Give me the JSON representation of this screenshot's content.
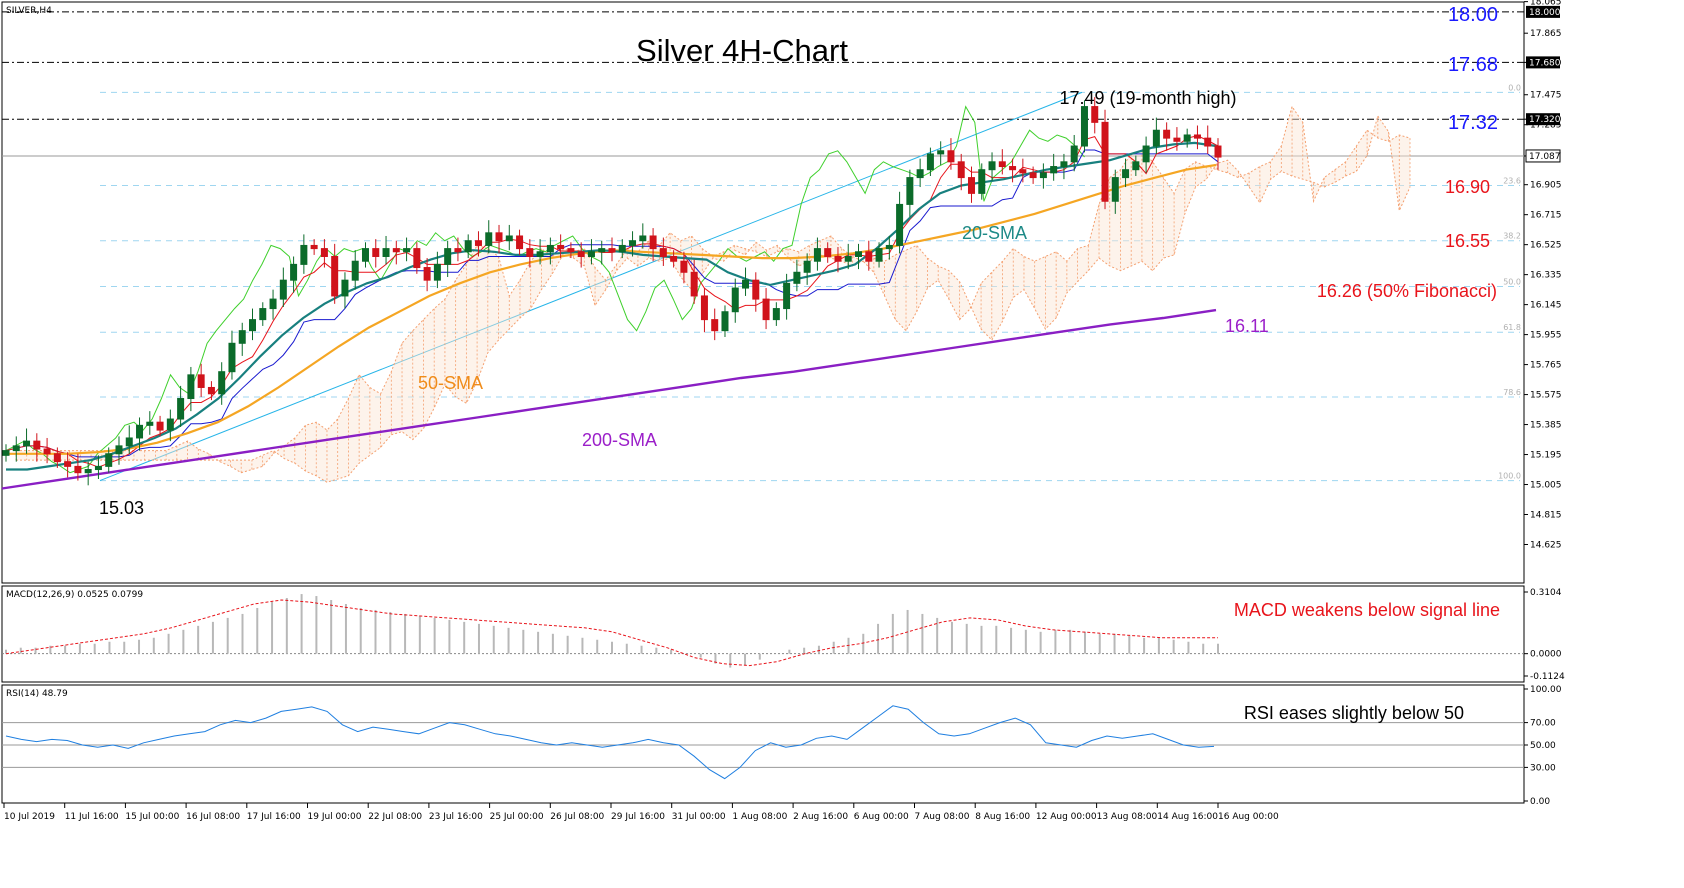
{
  "chart_data": {
    "type": "line",
    "symbol": "SILVER,H4",
    "title": "Silver 4H-Chart",
    "x_labels": [
      "10 Jul 2019",
      "11 Jul 16:00",
      "15 Jul 00:00",
      "16 Jul 08:00",
      "17 Jul 16:00",
      "19 Jul 00:00",
      "22 Jul 08:00",
      "23 Jul 16:00",
      "25 Jul 00:00",
      "26 Jul 08:00",
      "29 Jul 16:00",
      "31 Jul 00:00",
      "1 Aug 08:00",
      "2 Aug 16:00",
      "6 Aug 00:00",
      "7 Aug 08:00",
      "8 Aug 16:00",
      "12 Aug 00:00",
      "13 Aug 08:00",
      "14 Aug 16:00",
      "16 Aug 00:00"
    ],
    "price_axis": {
      "ylim": [
        14.4,
        18.05
      ],
      "ticks": [
        "18.065",
        "17.865",
        "17.680",
        "17.475",
        "17.320",
        "17.285",
        "17.087",
        "16.905",
        "16.715",
        "16.525",
        "16.335",
        "16.145",
        "15.955",
        "15.765",
        "15.575",
        "15.385",
        "15.195",
        "15.005",
        "14.815",
        "14.625"
      ]
    },
    "markers": [
      {
        "label": "18.00",
        "value": 18.0,
        "price_label": "18.000"
      },
      {
        "label": "17.68",
        "value": 17.68,
        "price_label": "17.680"
      },
      {
        "label": "17.32",
        "value": 17.32,
        "price_label": "17.320"
      }
    ],
    "current_price": {
      "value": 17.087,
      "price_label": "17.087"
    },
    "fibonacci": {
      "levels": [
        {
          "ratio": "0.0",
          "value": 17.49
        },
        {
          "ratio": "23.6",
          "value": 16.9
        },
        {
          "ratio": "38.2",
          "value": 16.55
        },
        {
          "ratio": "50.0",
          "value": 16.26
        },
        {
          "ratio": "61.8",
          "value": 15.97
        },
        {
          "ratio": "78.6",
          "value": 15.56
        },
        {
          "ratio": "100.0",
          "value": 15.03
        }
      ]
    },
    "annotations": {
      "high": "17.49 (19-month high)",
      "low": "15.03",
      "lvl_1690": "16.90",
      "lvl_1655": "16.55",
      "lvl_1626": "16.26 (50% Fibonacci)",
      "lvl_1611": "16.11",
      "sma20": "20-SMA",
      "sma50": "50-SMA",
      "sma200": "200-SMA"
    },
    "close_series": [
      15.22,
      15.25,
      15.28,
      15.23,
      15.2,
      15.15,
      15.12,
      15.08,
      15.1,
      15.12,
      15.2,
      15.25,
      15.3,
      15.38,
      15.4,
      15.35,
      15.42,
      15.55,
      15.7,
      15.62,
      15.58,
      15.72,
      15.9,
      15.98,
      16.05,
      16.12,
      16.18,
      16.3,
      16.4,
      16.52,
      16.5,
      16.45,
      16.2,
      16.3,
      16.42,
      16.5,
      16.45,
      16.5,
      16.48,
      16.5,
      16.38,
      16.3,
      16.4,
      16.5,
      16.48,
      16.55,
      16.52,
      16.6,
      16.55,
      16.58,
      16.5,
      16.45,
      16.48,
      16.52,
      16.5,
      16.48,
      16.45,
      16.48,
      16.5,
      16.48,
      16.52,
      16.55,
      16.58,
      16.5,
      16.45,
      16.42,
      16.35,
      16.2,
      16.05,
      15.98,
      16.1,
      16.25,
      16.3,
      16.18,
      16.05,
      16.12,
      16.28,
      16.35,
      16.42,
      16.5,
      16.45,
      16.42,
      16.45,
      16.48,
      16.42,
      16.5,
      16.52,
      16.78,
      16.95,
      17.0,
      17.1,
      17.12,
      17.05,
      16.95,
      16.85,
      17.0,
      17.05,
      17.02,
      17.0,
      16.98,
      16.95,
      16.98,
      17.02,
      17.05,
      17.15,
      17.4,
      17.3,
      16.8,
      16.95,
      17.0,
      17.05,
      17.15,
      17.25,
      17.2,
      17.18,
      17.22,
      17.2,
      17.15,
      17.08
    ],
    "sma20_series": [
      15.1,
      15.1,
      15.12,
      15.14,
      15.16,
      15.2,
      15.25,
      15.3,
      15.36,
      15.45,
      15.55,
      15.68,
      15.82,
      15.95,
      16.06,
      16.15,
      16.22,
      16.28,
      16.32,
      16.38,
      16.43,
      16.47,
      16.49,
      16.48,
      16.46,
      16.46,
      16.47,
      16.48,
      16.49,
      16.48,
      16.46,
      16.45,
      16.44,
      16.43,
      16.35,
      16.3,
      16.27,
      16.3,
      16.33,
      16.36,
      16.4,
      16.5,
      16.62,
      16.75,
      16.85,
      16.9,
      16.92,
      16.94,
      16.97,
      17.0,
      17.02,
      17.04,
      17.06,
      17.1,
      17.14,
      17.16,
      17.17,
      17.15
    ],
    "sma50_series": [
      15.2,
      15.2,
      15.2,
      15.21,
      15.23,
      15.27,
      15.33,
      15.4,
      15.5,
      15.62,
      15.75,
      15.88,
      16.0,
      16.1,
      16.2,
      16.28,
      16.35,
      16.4,
      16.44,
      16.47,
      16.49,
      16.48,
      16.47,
      16.46,
      16.45,
      16.44,
      16.44,
      16.45,
      16.47,
      16.5,
      16.54,
      16.58,
      16.62,
      16.67,
      16.72,
      16.78,
      16.84,
      16.9,
      16.95,
      17.0,
      17.03
    ],
    "sma200_series": [
      14.98,
      15.03,
      15.08,
      15.13,
      15.18,
      15.23,
      15.28,
      15.33,
      15.38,
      15.43,
      15.48,
      15.53,
      15.58,
      15.63,
      15.68,
      15.72,
      15.77,
      15.82,
      15.87,
      15.92,
      15.97,
      16.02,
      16.06,
      16.11
    ],
    "macd": {
      "label": "MACD(12,26,9) 0.0525 0.0799",
      "ylim": [
        -0.1124,
        0.3104
      ],
      "ticks": [
        "0.3104",
        "0.0000",
        "-0.1124"
      ],
      "histogram": [
        0.02,
        0.03,
        0.03,
        0.04,
        0.04,
        0.05,
        0.05,
        0.06,
        0.06,
        0.07,
        0.08,
        0.1,
        0.12,
        0.14,
        0.16,
        0.18,
        0.2,
        0.23,
        0.26,
        0.28,
        0.3,
        0.29,
        0.27,
        0.25,
        0.23,
        0.22,
        0.21,
        0.2,
        0.19,
        0.18,
        0.17,
        0.16,
        0.15,
        0.14,
        0.13,
        0.12,
        0.11,
        0.1,
        0.09,
        0.08,
        0.07,
        0.06,
        0.05,
        0.04,
        0.03,
        0.02,
        0.0,
        -0.02,
        -0.05,
        -0.07,
        -0.06,
        -0.03,
        0.0,
        0.02,
        0.03,
        0.04,
        0.06,
        0.08,
        0.1,
        0.15,
        0.2,
        0.22,
        0.2,
        0.18,
        0.16,
        0.15,
        0.14,
        0.14,
        0.13,
        0.12,
        0.11,
        0.12,
        0.12,
        0.11,
        0.1,
        0.1,
        0.09,
        0.08,
        0.08,
        0.07,
        0.06,
        0.05,
        0.05
      ],
      "signal": [
        0.0,
        0.02,
        0.04,
        0.06,
        0.08,
        0.1,
        0.13,
        0.17,
        0.21,
        0.25,
        0.27,
        0.26,
        0.24,
        0.22,
        0.2,
        0.19,
        0.18,
        0.17,
        0.16,
        0.15,
        0.14,
        0.13,
        0.11,
        0.07,
        0.03,
        -0.02,
        -0.05,
        -0.06,
        -0.04,
        0.0,
        0.03,
        0.05,
        0.08,
        0.12,
        0.16,
        0.18,
        0.17,
        0.14,
        0.12,
        0.11,
        0.1,
        0.09,
        0.08,
        0.08,
        0.08
      ]
    },
    "rsi": {
      "label": "RSI(14) 48.79",
      "ylim": [
        0,
        100
      ],
      "ticks": [
        "100.00",
        "70.00",
        "50.00",
        "30.00",
        "0.00"
      ],
      "series": [
        58,
        55,
        53,
        55,
        54,
        50,
        48,
        50,
        47,
        52,
        55,
        58,
        60,
        62,
        68,
        72,
        70,
        74,
        80,
        82,
        84,
        80,
        68,
        62,
        66,
        64,
        62,
        60,
        65,
        70,
        68,
        64,
        60,
        58,
        55,
        52,
        50,
        52,
        50,
        48,
        50,
        52,
        55,
        52,
        50,
        40,
        28,
        20,
        30,
        45,
        52,
        48,
        50,
        56,
        58,
        55,
        65,
        75,
        85,
        82,
        70,
        60,
        58,
        60,
        65,
        70,
        74,
        68,
        52,
        50,
        48,
        54,
        58,
        56,
        58,
        60,
        55,
        50,
        48,
        48.79
      ]
    },
    "notes": {
      "macd_note": "MACD weakens below signal line",
      "rsi_note": "RSI eases slightly below 50"
    }
  }
}
